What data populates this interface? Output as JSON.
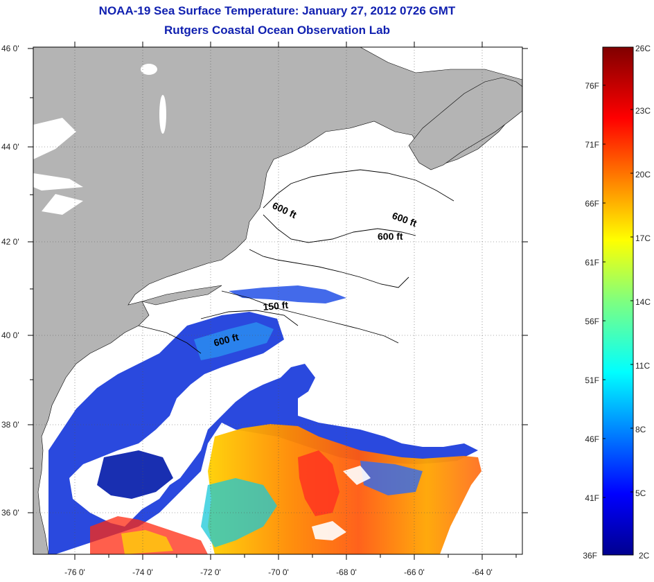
{
  "title": {
    "line1": "NOAA-19 Sea Surface Temperature:  January 27, 2012 0726 GMT",
    "line2": "Rutgers Coastal Ocean Observation Lab"
  },
  "map": {
    "lon_range": [
      -77,
      -62.5
    ],
    "lat_range": [
      35,
      46
    ],
    "lon_ticks": [
      "-76 0'",
      "-74 0'",
      "-72 0'",
      "-70 0'",
      "-68 0'",
      "-66 0'",
      "-64 0'"
    ],
    "lat_ticks": [
      "36 0'",
      "38 0'",
      "40 0'",
      "42 0'",
      "44 0'",
      "46 0'"
    ],
    "land_color": "#b4b4b4",
    "no_data_color": "#ffffff",
    "contour_labels": [
      "600 ft",
      "600 ft",
      "600 ft",
      "150 ft",
      "600 ft"
    ]
  },
  "colorbar": {
    "colormap": "jet",
    "range_c": [
      2,
      26
    ],
    "celsius_labels": [
      "26C",
      "23C",
      "20C",
      "17C",
      "14C",
      "11C",
      "8C",
      "5C",
      "2C"
    ],
    "fahrenheit_labels": [
      "76F",
      "71F",
      "66F",
      "61F",
      "56F",
      "51F",
      "46F",
      "41F",
      "36F"
    ]
  }
}
